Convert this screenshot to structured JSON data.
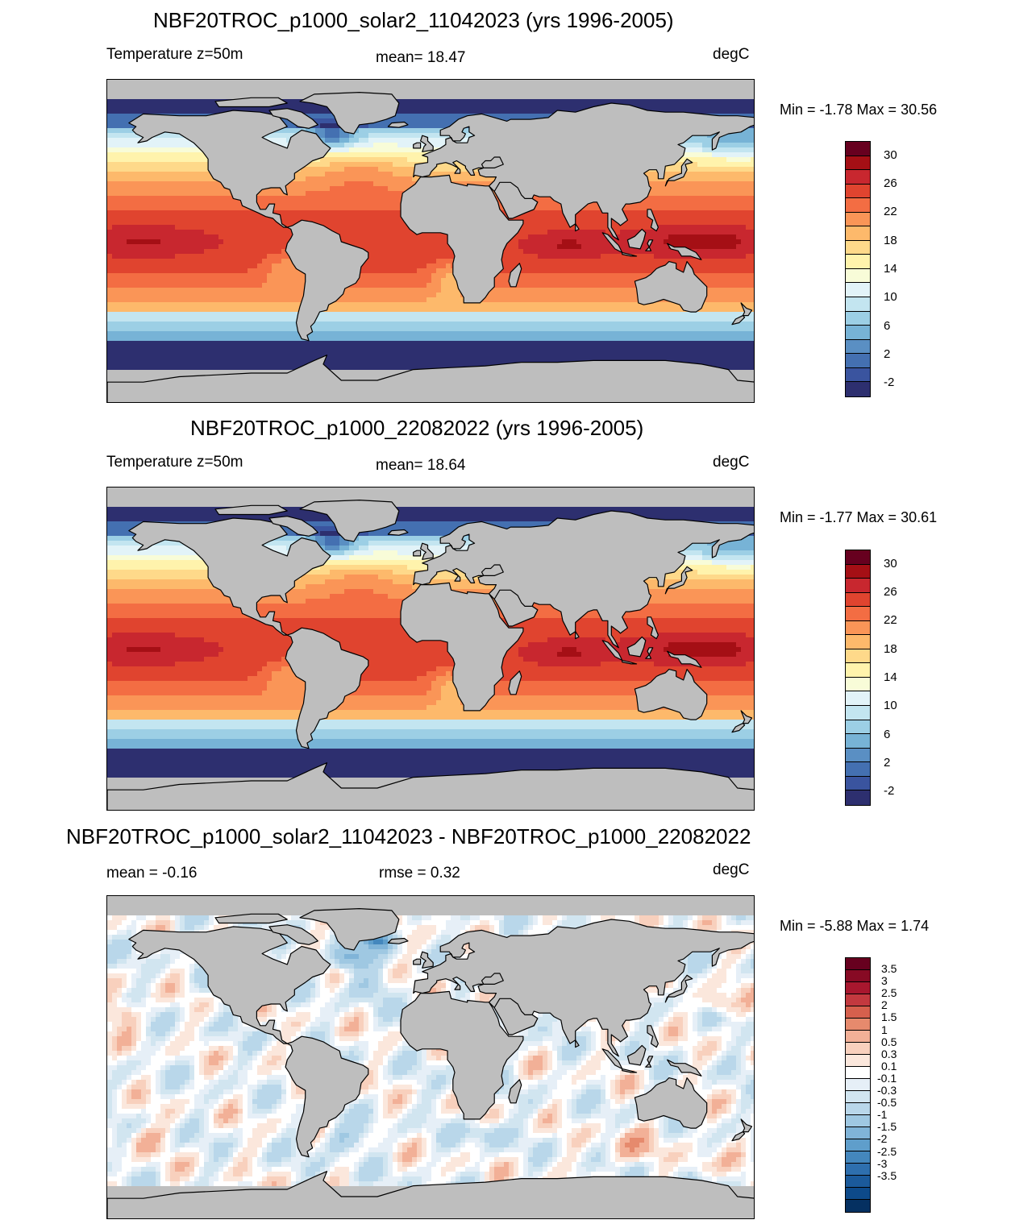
{
  "panels": [
    {
      "title": "NBF20TROC_p1000_solar2_11042023 (yrs 1996-2005)",
      "left_label": "Temperature z=50m",
      "center_label": "mean=  18.47",
      "units": "degC",
      "minmax": "Min =  -1.78 Max =  30.56",
      "field": "temperature"
    },
    {
      "title": "NBF20TROC_p1000_22082022 (yrs 1996-2005)",
      "left_label": "Temperature z=50m",
      "center_label": "mean=  18.64",
      "units": "degC",
      "minmax": "Min =  -1.77 Max =  30.61",
      "field": "temperature"
    },
    {
      "title": "NBF20TROC_p1000_solar2_11042023 - NBF20TROC_p1000_22082022",
      "left_label": "mean =  -0.16",
      "center_label": "rmse =   0.32",
      "units": "degC",
      "minmax": "Min =  -5.88 Max =   1.74",
      "field": "difference"
    }
  ],
  "temp_colorbar": {
    "colors": [
      "#67001f",
      "#a50f15",
      "#c8272f",
      "#e0442f",
      "#f36d43",
      "#fa9557",
      "#fdb96b",
      "#fed98a",
      "#fff3ac",
      "#f8fcd8",
      "#e2f3f8",
      "#c3e5f0",
      "#9ccfe5",
      "#77b3d6",
      "#5a8fc3",
      "#4470b1",
      "#3a549f",
      "#2d2f6f"
    ],
    "labels": [
      "30",
      "26",
      "22",
      "18",
      "14",
      "10",
      "6",
      "2",
      "-2"
    ]
  },
  "diff_colorbar": {
    "colors": [
      "#67001f",
      "#870a24",
      "#a8172e",
      "#c3393f",
      "#d6604d",
      "#e68a6d",
      "#f2b097",
      "#f8d0bd",
      "#fbe7dc",
      "#ffffff",
      "#e6eff7",
      "#d1e5f0",
      "#b9d7ea",
      "#9fc8e2",
      "#80b4d8",
      "#5f9ecb",
      "#4487bd",
      "#2e6fae",
      "#1b5a9b",
      "#0d4a8a",
      "#053061"
    ],
    "labels": [
      "3.5",
      "3",
      "2.5",
      "2",
      "1.5",
      "1",
      "0.5",
      "0.3",
      "0.1",
      "-0.1",
      "-0.3",
      "-0.5",
      "-1",
      "-1.5",
      "-2",
      "-2.5",
      "-3",
      "-3.5"
    ]
  }
}
